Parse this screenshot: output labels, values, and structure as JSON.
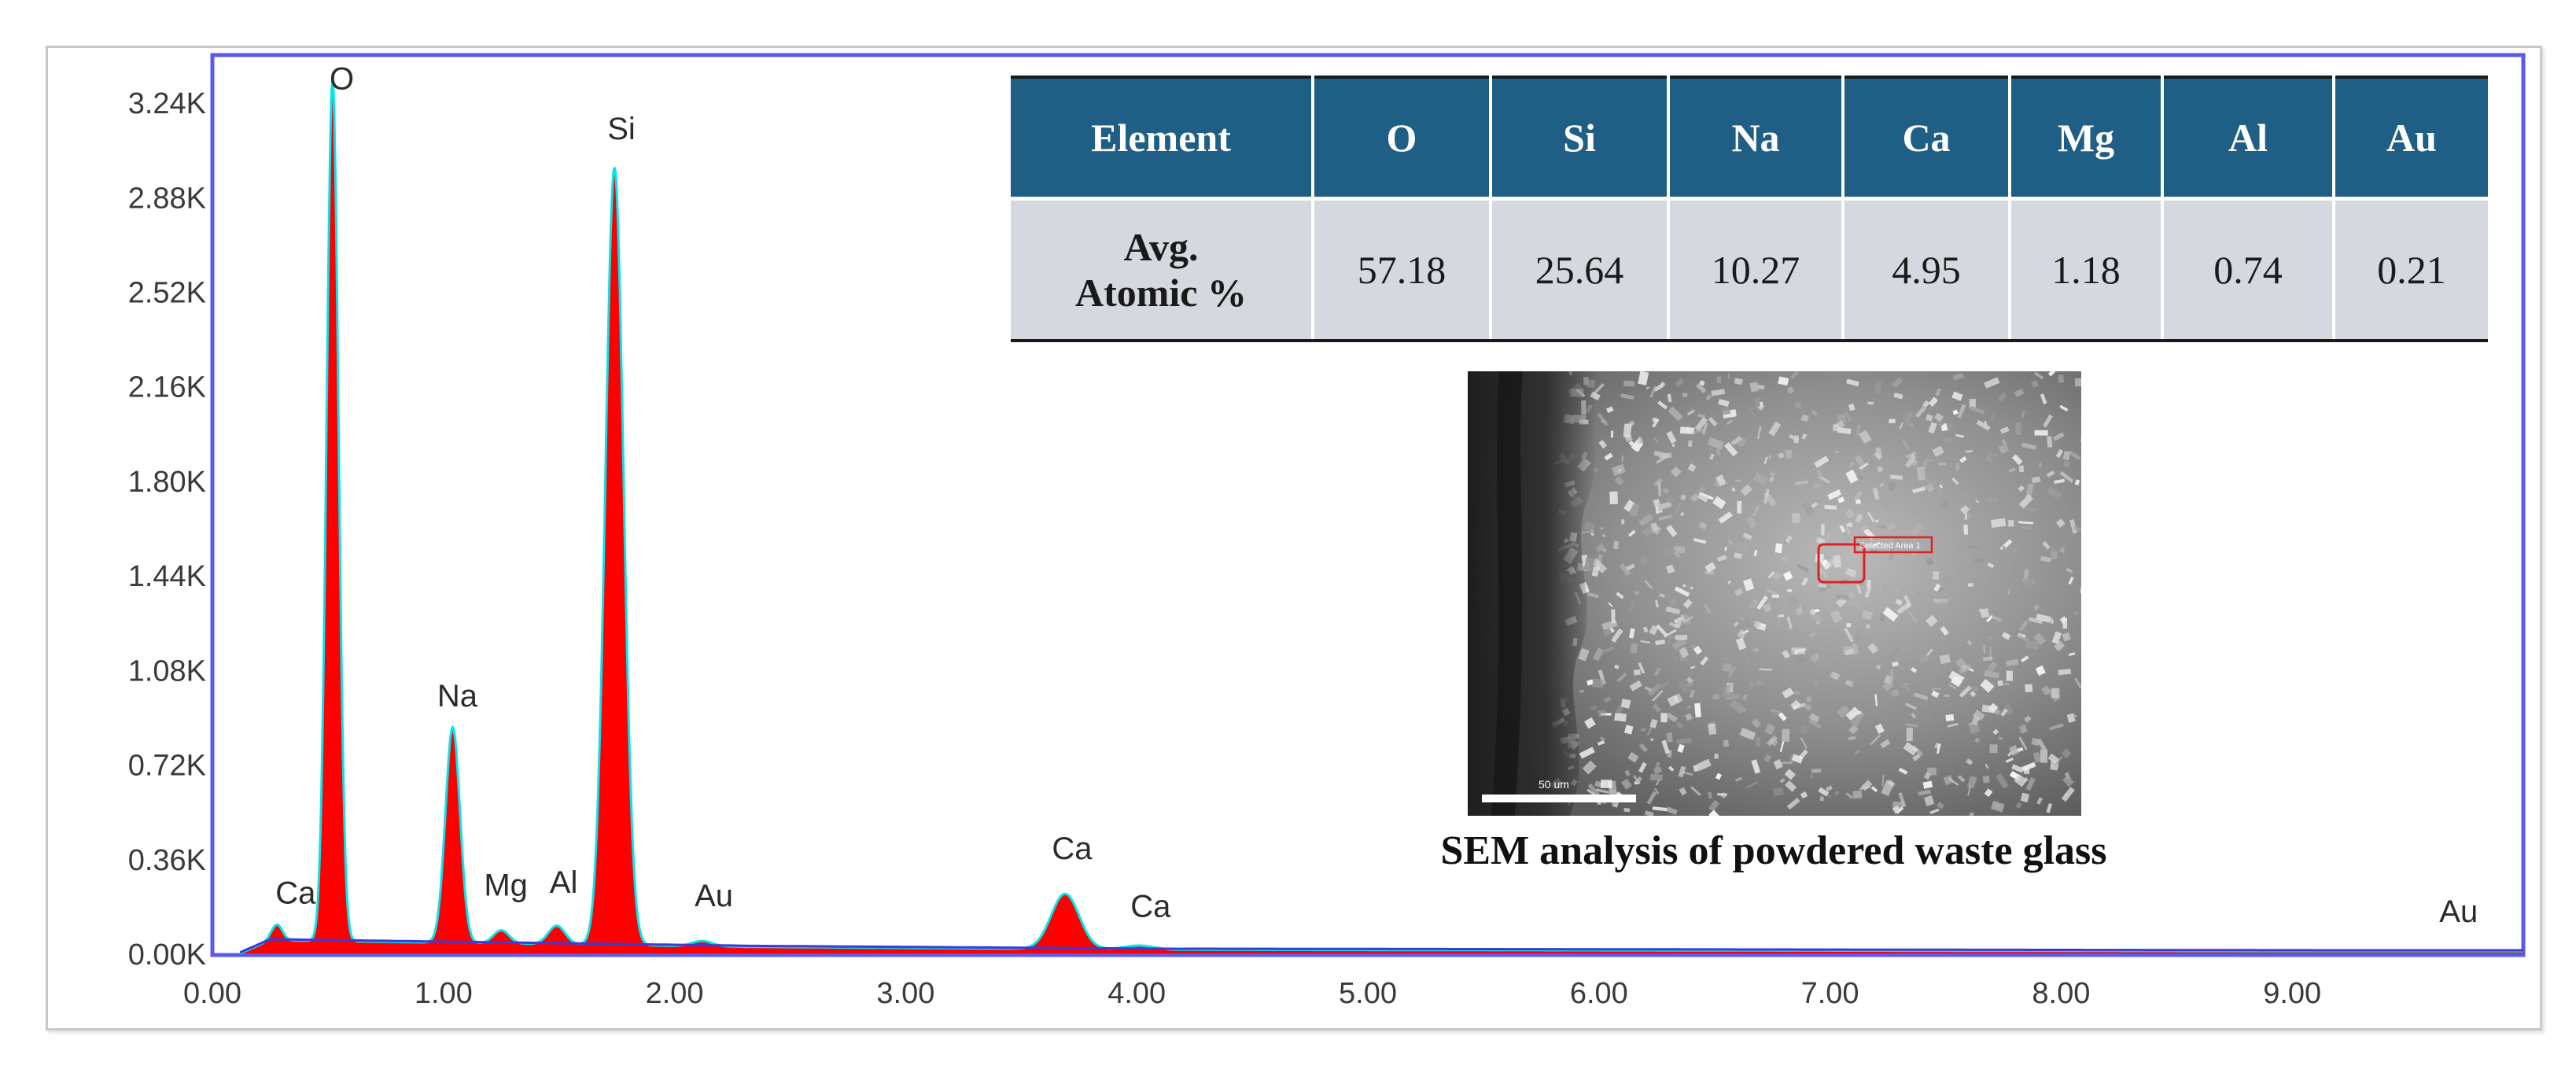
{
  "chart_data": {
    "type": "area",
    "title": "",
    "xlabel": "",
    "ylabel": "",
    "xlim": [
      0,
      10
    ],
    "ylim": [
      0,
      3.42
    ],
    "x_ticks": [
      "0.00",
      "1.00",
      "2.00",
      "3.00",
      "4.00",
      "5.00",
      "6.00",
      "7.00",
      "8.00",
      "9.00"
    ],
    "y_ticks": [
      "0.00K",
      "0.36K",
      "0.72K",
      "1.08K",
      "1.44K",
      "1.80K",
      "2.16K",
      "2.52K",
      "2.88K",
      "3.24K"
    ],
    "grid": false,
    "legend": "none",
    "colors": {
      "fill": "#ff0000",
      "line": "#00e5f0",
      "background_trace": "#3b3bd6",
      "frame": "#5a5af0"
    },
    "peaks": [
      {
        "label": "Ca",
        "energy_keV": 0.28,
        "counts_K": 0.06
      },
      {
        "label": "O",
        "energy_keV": 0.52,
        "counts_K": 3.28
      },
      {
        "label": "Na",
        "energy_keV": 1.04,
        "counts_K": 0.82
      },
      {
        "label": "Mg",
        "energy_keV": 1.25,
        "counts_K": 0.05
      },
      {
        "label": "Al",
        "energy_keV": 1.49,
        "counts_K": 0.07
      },
      {
        "label": "Si",
        "energy_keV": 1.74,
        "counts_K": 2.96
      },
      {
        "label": "Au",
        "energy_keV": 2.12,
        "counts_K": 0.02
      },
      {
        "label": "Ca",
        "energy_keV": 3.69,
        "counts_K": 0.21
      },
      {
        "label": "Ca",
        "energy_keV": 4.01,
        "counts_K": 0.015
      },
      {
        "label": "Au",
        "energy_keV": 9.71,
        "counts_K": 0.0
      }
    ],
    "labels": [
      {
        "text": "Ca",
        "x": 0.36,
        "y": 0.19
      },
      {
        "text": "O",
        "x": 0.56,
        "y": 3.29
      },
      {
        "text": "Na",
        "x": 1.06,
        "y": 0.94
      },
      {
        "text": "Mg",
        "x": 1.27,
        "y": 0.22
      },
      {
        "text": "Al",
        "x": 1.52,
        "y": 0.23
      },
      {
        "text": "Si",
        "x": 1.77,
        "y": 3.1
      },
      {
        "text": "Au",
        "x": 2.17,
        "y": 0.18
      },
      {
        "text": "Ca",
        "x": 3.72,
        "y": 0.36
      },
      {
        "text": "Ca",
        "x": 4.06,
        "y": 0.14
      },
      {
        "text": "Au",
        "x": 9.72,
        "y": 0.12
      }
    ]
  },
  "table": {
    "headers": [
      "Element",
      "O",
      "Si",
      "Na",
      "Ca",
      "Mg",
      "Al",
      "Au"
    ],
    "row_label_line1": "Avg.",
    "row_label_line2": "Atomic %",
    "values": [
      "57.18",
      "25.64",
      "10.27",
      "4.95",
      "1.18",
      "0.74",
      "0.21"
    ]
  },
  "sem": {
    "caption": "SEM analysis of powdered waste glass",
    "scale_label": "50 um",
    "area_label": "Selected Area 1"
  }
}
